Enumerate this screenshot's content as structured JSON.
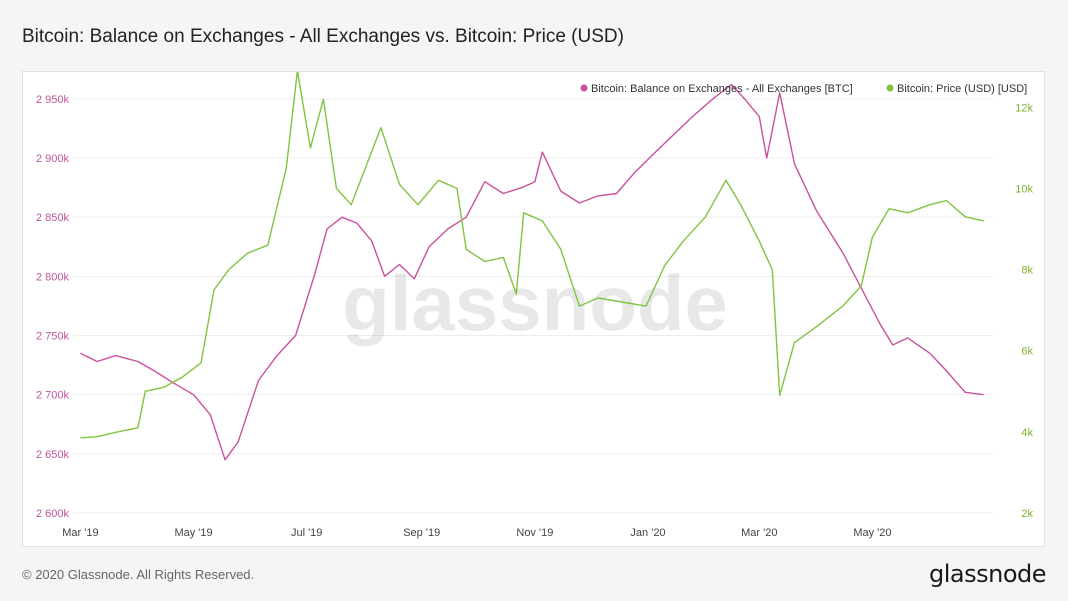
{
  "page": {
    "title": "Bitcoin: Balance on Exchanges - All Exchanges vs. Bitcoin: Price (USD)",
    "copyright": "© 2020 Glassnode. All Rights Reserved.",
    "logo": "glassnode",
    "watermark": "glassnode"
  },
  "chart_data": {
    "type": "line",
    "title": "Bitcoin: Balance on Exchanges - All Exchanges vs. Bitcoin: Price (USD)",
    "legend_placement": "top-right",
    "grid": true,
    "x_ticks": [
      "Mar '19",
      "May '19",
      "Jul '19",
      "Sep '19",
      "Nov '19",
      "Jan '20",
      "Mar '20",
      "May '20"
    ],
    "y_left": {
      "ylim": [
        2600000,
        2960000
      ],
      "ticks": [
        "2 600k",
        "2 650k",
        "2 700k",
        "2 750k",
        "2 800k",
        "2 850k",
        "2 900k",
        "2 950k"
      ],
      "color": "#c1539e"
    },
    "y_right": {
      "ylim": [
        2000,
        12500
      ],
      "ticks": [
        "2k",
        "4k",
        "6k",
        "8k",
        "10k",
        "12k"
      ],
      "color": "#7fb12e"
    },
    "series": [
      {
        "name": "Bitcoin: Balance on Exchanges - All Exchanges [BTC]",
        "axis": "left",
        "color": "#c9519d",
        "x": [
          "2019-03-01",
          "2019-03-10",
          "2019-03-20",
          "2019-04-01",
          "2019-04-10",
          "2019-04-20",
          "2019-05-01",
          "2019-05-10",
          "2019-05-18",
          "2019-05-25",
          "2019-06-05",
          "2019-06-15",
          "2019-06-25",
          "2019-07-05",
          "2019-07-12",
          "2019-07-20",
          "2019-07-28",
          "2019-08-05",
          "2019-08-12",
          "2019-08-20",
          "2019-08-28",
          "2019-09-05",
          "2019-09-15",
          "2019-09-25",
          "2019-10-05",
          "2019-10-15",
          "2019-10-25",
          "2019-11-01",
          "2019-11-05",
          "2019-11-15",
          "2019-11-25",
          "2019-12-05",
          "2019-12-15",
          "2019-12-25",
          "2020-01-05",
          "2020-01-15",
          "2020-01-25",
          "2020-02-05",
          "2020-02-15",
          "2020-02-22",
          "2020-03-01",
          "2020-03-05",
          "2020-03-12",
          "2020-03-20",
          "2020-04-01",
          "2020-04-15",
          "2020-04-25",
          "2020-05-05",
          "2020-05-12",
          "2020-05-20",
          "2020-06-01",
          "2020-06-10",
          "2020-06-20",
          "2020-06-30"
        ],
        "y": [
          2735000,
          2728000,
          2733000,
          2728000,
          2720000,
          2710000,
          2700000,
          2683000,
          2645000,
          2660000,
          2712000,
          2733000,
          2750000,
          2800000,
          2840000,
          2850000,
          2845000,
          2830000,
          2800000,
          2810000,
          2798000,
          2825000,
          2840000,
          2850000,
          2880000,
          2870000,
          2875000,
          2880000,
          2905000,
          2872000,
          2862000,
          2868000,
          2870000,
          2888000,
          2905000,
          2920000,
          2935000,
          2950000,
          2962000,
          2950000,
          2935000,
          2900000,
          2955000,
          2895000,
          2855000,
          2820000,
          2790000,
          2760000,
          2742000,
          2748000,
          2735000,
          2720000,
          2702000,
          2700000
        ]
      },
      {
        "name": "Bitcoin: Price (USD) [USD]",
        "axis": "right",
        "color": "#82c341",
        "x": [
          "2019-03-01",
          "2019-03-10",
          "2019-03-20",
          "2019-04-01",
          "2019-04-05",
          "2019-04-15",
          "2019-04-25",
          "2019-05-05",
          "2019-05-12",
          "2019-05-20",
          "2019-05-30",
          "2019-06-10",
          "2019-06-20",
          "2019-06-26",
          "2019-07-03",
          "2019-07-10",
          "2019-07-17",
          "2019-07-25",
          "2019-08-05",
          "2019-08-10",
          "2019-08-20",
          "2019-08-30",
          "2019-09-10",
          "2019-09-20",
          "2019-09-25",
          "2019-10-05",
          "2019-10-15",
          "2019-10-22",
          "2019-10-26",
          "2019-11-05",
          "2019-11-15",
          "2019-11-25",
          "2019-12-05",
          "2019-12-18",
          "2019-12-31",
          "2020-01-10",
          "2020-01-20",
          "2020-02-01",
          "2020-02-12",
          "2020-02-20",
          "2020-03-01",
          "2020-03-08",
          "2020-03-12",
          "2020-03-20",
          "2020-04-01",
          "2020-04-15",
          "2020-04-25",
          "2020-05-01",
          "2020-05-10",
          "2020-05-20",
          "2020-06-01",
          "2020-06-10",
          "2020-06-20",
          "2020-06-30"
        ],
        "y": [
          3850,
          3880,
          3990,
          4100,
          5000,
          5100,
          5350,
          5700,
          7500,
          8000,
          8400,
          8600,
          10500,
          12900,
          11000,
          12200,
          10000,
          9600,
          10900,
          11500,
          10100,
          9600,
          10200,
          10000,
          8500,
          8200,
          8300,
          7400,
          9400,
          9200,
          8500,
          7100,
          7300,
          7200,
          7100,
          8100,
          8700,
          9300,
          10200,
          9600,
          8700,
          8000,
          4900,
          6200,
          6600,
          7100,
          7600,
          8800,
          9500,
          9400,
          9600,
          9700,
          9300,
          9200
        ]
      }
    ]
  }
}
